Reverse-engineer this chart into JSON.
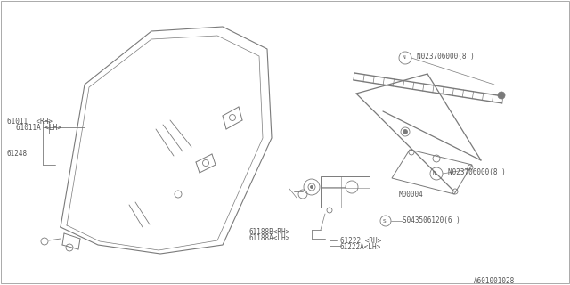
{
  "bg_color": "#ffffff",
  "lc": "#7a7a7a",
  "tc": "#555555",
  "fig_width": 6.4,
  "fig_height": 3.2,
  "dpi": 100,
  "diagram_code": "A601001028",
  "label_61011_RH": "61011  <RH>",
  "label_61011A_LH": "61011A <LH>",
  "label_61248": "61248",
  "label_N_top": "N023706000(8 )",
  "label_N_mid": "N023706000(8 )",
  "label_M00004": "M00004",
  "label_S": "S043506120(6 )",
  "label_61188B": "61188B<RH>",
  "label_61188A": "61188A<LH>",
  "label_61222": "61222 <RH>",
  "label_61222A": "61222A<LH>"
}
